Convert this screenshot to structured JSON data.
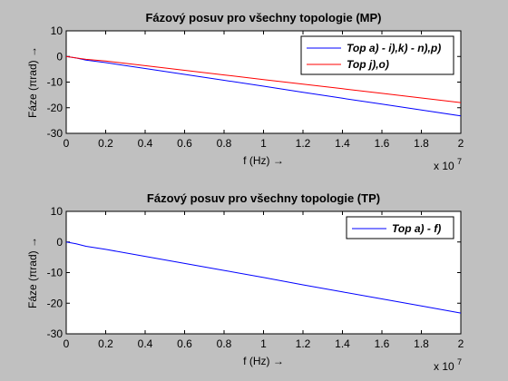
{
  "figure": {
    "background": "#c0c0c0"
  },
  "chart_data": [
    {
      "type": "line",
      "title": "Fázový posuv pro všechny topologie (MP)",
      "xlabel": "f (Hz) →",
      "ylabel": "Fáze (πrad) →",
      "x_exponent_label": "x 10",
      "x_exponent": "7",
      "xlim": [
        0,
        2
      ],
      "ylim": [
        -30,
        10
      ],
      "xticks": [
        "0",
        "0.2",
        "0.4",
        "0.6",
        "0.8",
        "1",
        "1.2",
        "1.4",
        "1.6",
        "1.8",
        "2"
      ],
      "yticks": [
        "10",
        "0",
        "-10",
        "-20",
        "-30"
      ],
      "grid": false,
      "legend_position": "top-right",
      "series": [
        {
          "name": "Top a) - i),k) - n),p)",
          "color": "#0000ff",
          "x": [
            0,
            0.05,
            0.1,
            0.2,
            0.4,
            0.6,
            0.8,
            1.0,
            1.2,
            1.4,
            1.6,
            1.8,
            2.0
          ],
          "y": [
            0,
            -0.6,
            -1.4,
            -2.4,
            -4.7,
            -7.0,
            -9.3,
            -11.6,
            -14.0,
            -16.3,
            -18.6,
            -20.9,
            -23.2
          ]
        },
        {
          "name": "Top j),o)",
          "color": "#ff0000",
          "x": [
            0,
            0.05,
            0.1,
            0.2,
            0.4,
            0.6,
            0.8,
            1.0,
            1.2,
            1.4,
            1.6,
            1.8,
            2.0
          ],
          "y": [
            0,
            -0.6,
            -1.1,
            -1.8,
            -3.6,
            -5.4,
            -7.2,
            -9.0,
            -10.8,
            -12.6,
            -14.4,
            -16.2,
            -18.0
          ]
        }
      ]
    },
    {
      "type": "line",
      "title": "Fázový posuv pro všechny topologie (TP)",
      "xlabel": "f (Hz) →",
      "ylabel": "Fáze (πrad) →",
      "x_exponent_label": "x 10",
      "x_exponent": "7",
      "xlim": [
        0,
        2
      ],
      "ylim": [
        -30,
        10
      ],
      "xticks": [
        "0",
        "0.2",
        "0.4",
        "0.6",
        "0.8",
        "1",
        "1.2",
        "1.4",
        "1.6",
        "1.8",
        "2"
      ],
      "yticks": [
        "10",
        "0",
        "-10",
        "-20",
        "-30"
      ],
      "grid": false,
      "legend_position": "top-right",
      "series": [
        {
          "name": "Top a) - f)",
          "color": "#0000ff",
          "x": [
            0,
            0.05,
            0.1,
            0.2,
            0.4,
            0.6,
            0.8,
            1.0,
            1.2,
            1.4,
            1.6,
            1.8,
            2.0
          ],
          "y": [
            0,
            -0.6,
            -1.4,
            -2.4,
            -4.7,
            -7.0,
            -9.3,
            -11.6,
            -14.0,
            -16.3,
            -18.6,
            -20.9,
            -23.2
          ]
        }
      ]
    }
  ]
}
